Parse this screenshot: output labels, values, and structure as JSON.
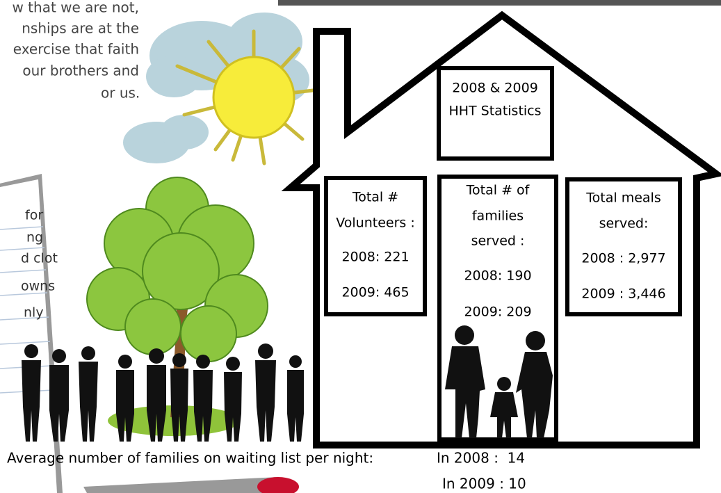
{
  "intro_text": {
    "lines": [
      "w that we are not,",
      "nships are at the",
      "exercise that faith",
      "our brothers and",
      "or us."
    ]
  },
  "note": {
    "lines": [
      "for",
      "ng",
      "d clot",
      "owns",
      "nly"
    ]
  },
  "house": {
    "title": {
      "lines": [
        "2008 & 2009",
        "HHT Statistics"
      ]
    },
    "boxes": [
      {
        "lines": [
          "Total #",
          "Volunteers :",
          "2008: 221",
          "2009: 465"
        ]
      },
      {
        "lines": [
          "Total # of",
          "families",
          "served :",
          "2008: 190",
          "2009: 209"
        ]
      },
      {
        "lines": [
          "Total meals",
          "served:",
          "2008 : 2,977",
          "2009 : 3,446"
        ]
      }
    ]
  },
  "waiting_list": {
    "label": "Average number of families on waiting list per night:",
    "lines": [
      "In 2008 :  14",
      "In 2009 : 10"
    ]
  }
}
